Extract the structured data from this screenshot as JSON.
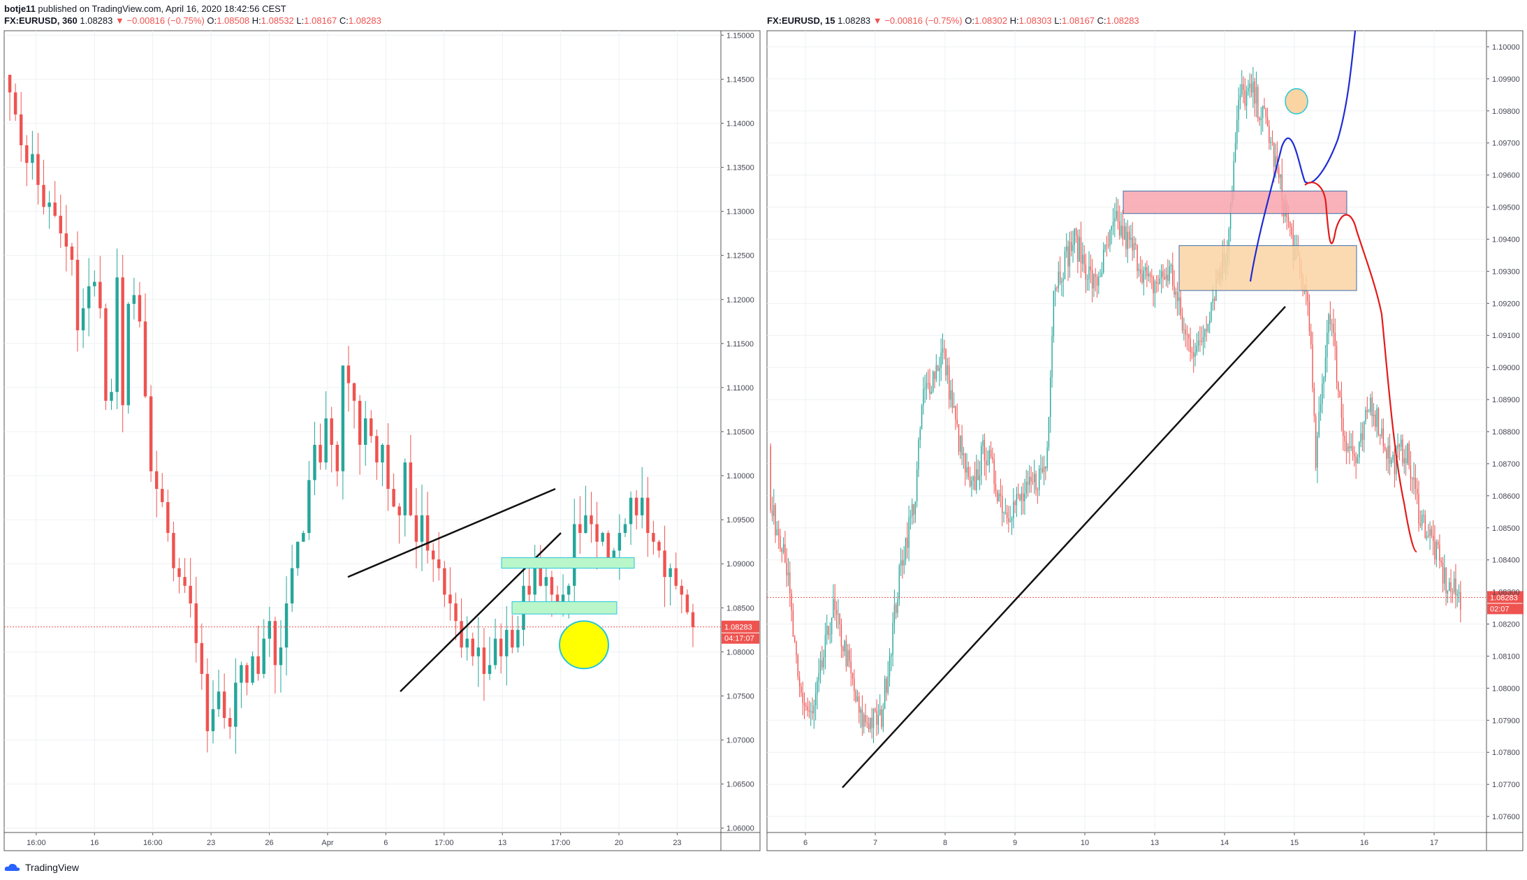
{
  "header": {
    "author": "botje11",
    "published_text": "published on TradingView.com, April 16, 2020 18:42:56 CEST"
  },
  "left_pane": {
    "symbol": "FX:EURUSD, 360",
    "last": "1.08283",
    "change": "▼ −0.00816 (−0.75%)",
    "o_label": "O:",
    "o": "1.08508",
    "h_label": "H:",
    "h": "1.08532",
    "l_label": "L:",
    "l": "1.08167",
    "c_label": "C:",
    "c": "1.08283",
    "price_tag": "1.08283",
    "countdown": "04:17:07"
  },
  "right_pane": {
    "symbol": "FX:EURUSD, 15",
    "last": "1.08283",
    "change": "▼ −0.00816 (−0.75%)",
    "o_label": "O:",
    "o": "1.08302",
    "h_label": "H:",
    "h": "1.08303",
    "l_label": "L:",
    "l": "1.08167",
    "c_label": "C:",
    "c": "1.08283",
    "price_tag": "1.08283",
    "countdown": "02:07"
  },
  "footer": {
    "brand": "TradingView"
  },
  "chart_data": [
    {
      "type": "candlestick",
      "symbol": "FX:EURUSD",
      "timeframe": "360",
      "y_range": [
        1.0595,
        1.1505
      ],
      "y_ticks": [
        "1.15000",
        "1.14500",
        "1.14000",
        "1.13500",
        "1.13000",
        "1.12500",
        "1.12000",
        "1.11500",
        "1.11000",
        "1.10500",
        "1.10000",
        "1.09500",
        "1.09000",
        "1.08500",
        "1.08000",
        "1.07500",
        "1.07000",
        "1.06500",
        "1.06000"
      ],
      "x_ticks": [
        "16:00",
        "16",
        "16:00",
        "23",
        "26",
        "Apr",
        "6",
        "17:00",
        "13",
        "17:00",
        "20",
        "23"
      ],
      "closes": [
        1.1435,
        1.141,
        1.1375,
        1.1355,
        1.1365,
        1.133,
        1.1305,
        1.131,
        1.1295,
        1.1275,
        1.126,
        1.1245,
        1.1165,
        1.119,
        1.1215,
        1.122,
        1.119,
        1.1085,
        1.1095,
        1.1225,
        1.108,
        1.1195,
        1.1205,
        1.1175,
        1.109,
        1.1005,
        1.0985,
        1.097,
        1.0935,
        1.0895,
        1.0885,
        1.0875,
        1.0855,
        1.081,
        1.0775,
        1.071,
        1.0735,
        1.0755,
        1.0725,
        1.0715,
        1.0765,
        1.0785,
        1.0765,
        1.0795,
        1.0775,
        1.0815,
        1.0835,
        1.0785,
        1.0805,
        1.0855,
        1.0895,
        1.0925,
        1.0935,
        1.0995,
        1.1035,
        1.1015,
        1.1065,
        1.1035,
        1.1005,
        1.1125,
        1.1105,
        1.1085,
        1.1035,
        1.1065,
        1.1045,
        1.1015,
        1.1035,
        1.0985,
        1.0965,
        1.0955,
        1.1015,
        1.0955,
        1.0925,
        1.0955,
        1.0915,
        1.0905,
        1.0895,
        1.0865,
        1.0855,
        1.0835,
        1.0805,
        1.0815,
        1.0795,
        1.0805,
        1.0775,
        1.0785,
        1.0815,
        1.0795,
        1.0825,
        1.0805,
        1.0825,
        1.0875,
        1.0865,
        1.0895,
        1.0875,
        1.0885,
        1.0865,
        1.0855,
        1.0865,
        1.0875,
        1.0945,
        1.0935,
        1.0955,
        1.0945,
        1.0925,
        1.0935,
        1.0905,
        1.0915,
        1.0935,
        1.0945,
        1.0975,
        1.0955,
        1.0975,
        1.0935,
        1.0925,
        1.0915,
        1.0885,
        1.0895,
        1.0875,
        1.0865,
        1.0845,
        1.0828
      ],
      "last_price": 1.08283,
      "annotations": [
        {
          "kind": "trendline",
          "from": [
            1.0885,
            "2020-03-31"
          ],
          "to": [
            1.0985,
            "2020-04-15"
          ]
        },
        {
          "kind": "trendline",
          "from": [
            1.0755,
            "2020-04-05"
          ],
          "to": [
            1.0935,
            "2020-04-15"
          ]
        },
        {
          "kind": "zone",
          "color": "#b9f6ca",
          "from_price": 1.0895,
          "to_price": 1.0907
        },
        {
          "kind": "zone",
          "color": "#b9f6ca",
          "from_price": 1.0843,
          "to_price": 1.0857
        },
        {
          "kind": "circle",
          "color": "#ffff00",
          "center_price": 1.0808
        }
      ]
    },
    {
      "type": "candlestick",
      "symbol": "FX:EURUSD",
      "timeframe": "15",
      "y_range": [
        1.0755,
        1.1005
      ],
      "y_ticks": [
        "1.10000",
        "1.09900",
        "1.09800",
        "1.09700",
        "1.09600",
        "1.09500",
        "1.09400",
        "1.09300",
        "1.09200",
        "1.09100",
        "1.09000",
        "1.08900",
        "1.08800",
        "1.08700",
        "1.08600",
        "1.08500",
        "1.08400",
        "1.08300",
        "1.08200",
        "1.08100",
        "1.08000",
        "1.07900",
        "1.07800",
        "1.07700",
        "1.07600"
      ],
      "x_ticks": [
        "6",
        "7",
        "8",
        "9",
        "10",
        "13",
        "14",
        "15",
        "16",
        "17"
      ],
      "last_price": 1.08283,
      "annotations": [
        {
          "kind": "zone",
          "color": "#f8a5ad",
          "from_price": 1.0948,
          "to_price": 1.0955
        },
        {
          "kind": "zone",
          "color": "#fbd4a3",
          "from_price": 1.0924,
          "to_price": 1.0938
        },
        {
          "kind": "trendline",
          "from": [
            1.0769,
            "2020-04-06"
          ],
          "to": [
            1.0919,
            "2020-04-14"
          ]
        },
        {
          "kind": "projection",
          "color": "#1e2bd6"
        },
        {
          "kind": "projection",
          "color": "#e41a1a"
        },
        {
          "kind": "circle",
          "color": "#fbd4a3",
          "center_price": 1.0983
        }
      ]
    }
  ]
}
